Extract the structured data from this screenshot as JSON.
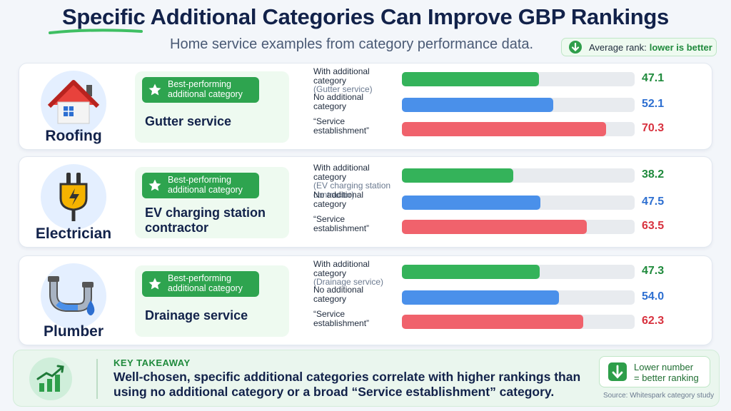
{
  "header": {
    "title_highlight": "Specific",
    "title_rest": " Additional Categories Can Improve GBP Rankings",
    "subtitle": "Home service examples from category performance data.",
    "rank_note_prefix": "Average rank:",
    "rank_note_emphasis": "lower is better"
  },
  "colors": {
    "with_category": "#34b35a",
    "no_category": "#4a90ea",
    "service_establishment": "#f0626c",
    "value_green": "#1f8a3c",
    "value_blue": "#2d6fd1",
    "value_red": "#d8323f"
  },
  "badge_label_line1": "Best-performing",
  "badge_label_line2": "additional category",
  "chart_data": {
    "type": "bar",
    "orientation": "horizontal",
    "metric": "Average rank",
    "note": "lower is better",
    "xlim": [
      0,
      80
    ],
    "groups": [
      {
        "trade": "Roofing",
        "icon": "house-icon",
        "best_category": [
          "Gutter service"
        ],
        "bars": [
          {
            "label": [
              "With additional",
              "category"
            ],
            "sub": "(Gutter service)",
            "value": 47.1,
            "display": "47.1",
            "kind": "with"
          },
          {
            "label": [
              "No additional",
              "category"
            ],
            "sub": "",
            "value": 52.1,
            "display": "52.1",
            "kind": "none"
          },
          {
            "label": [
              "“Service",
              "establishment”"
            ],
            "sub": "",
            "value": 70.3,
            "display": "70.3",
            "kind": "service"
          }
        ]
      },
      {
        "trade": "Electrician",
        "icon": "plug-icon",
        "best_category": [
          "EV charging station",
          "contractor"
        ],
        "bars": [
          {
            "label": [
              "With additional",
              "category"
            ],
            "sub": "(EV charging station contractor)",
            "value": 38.2,
            "display": "38.2",
            "kind": "with"
          },
          {
            "label": [
              "No additional",
              "category"
            ],
            "sub": "",
            "value": 47.5,
            "display": "47.5",
            "kind": "none"
          },
          {
            "label": [
              "“Service",
              "establishment”"
            ],
            "sub": "",
            "value": 63.5,
            "display": "63.5",
            "kind": "service"
          }
        ]
      },
      {
        "trade": "Plumber",
        "icon": "pipe-icon",
        "best_category": [
          "Drainage service"
        ],
        "bars": [
          {
            "label": [
              "With additional",
              "category"
            ],
            "sub": "(Drainage service)",
            "value": 47.3,
            "display": "47.3",
            "kind": "with"
          },
          {
            "label": [
              "No additional",
              "category"
            ],
            "sub": "",
            "value": 54.0,
            "display": "54.0",
            "kind": "none"
          },
          {
            "label": [
              "“Service",
              "establishment”"
            ],
            "sub": "",
            "value": 62.3,
            "display": "62.3",
            "kind": "service"
          }
        ]
      }
    ]
  },
  "takeaway": {
    "heading": "KEY TAKEAWAY",
    "text": "Well-chosen, specific additional categories correlate with higher rankings than using no additional category or a broad “Service establishment” category.",
    "lower_line1": "Lower number",
    "lower_line2": "= better ranking",
    "source": "Source: Whitespark category study"
  }
}
